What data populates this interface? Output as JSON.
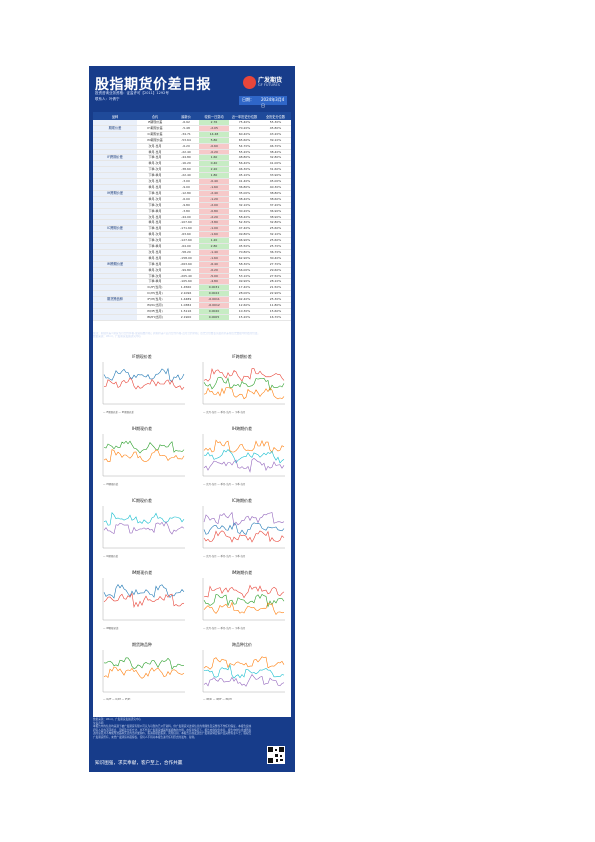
{
  "header": {
    "title": "股指期货价差日报",
    "logo_text": "广发期货",
    "logo_sub": "GF FUTURES",
    "subline1": "投资咨询业务资格：证监许可【2011】1292号",
    "subline2": "联系人：叶倩宁",
    "date_label": "日期：",
    "date_value": "2024年3月4日"
  },
  "table": {
    "columns": [
      "品种",
      "合约",
      "最新价",
      "较前一日变动",
      "近一年历史分位数",
      "全历史分位数"
    ],
    "rows": [
      {
        "group": "",
        "item": "IF期现价差",
        "a": "-6.92",
        "b": "2.76",
        "c": "75.40%",
        "d": "55.30%",
        "cls": "neg"
      },
      {
        "group": "期现价差",
        "item": "IH期现价差",
        "a": "-5.48",
        "b": "-2.05",
        "c": "70.20%",
        "d": "45.80%",
        "cls": "pos"
      },
      {
        "group": "",
        "item": "IC期现价差",
        "a": "-34.71",
        "b": "14.48",
        "c": "60.40%",
        "d": "43.20%",
        "cls": "neg"
      },
      {
        "group": "",
        "item": "IM期现价差",
        "a": "-53.64",
        "b": "5.80",
        "c": "65.60%",
        "d": "39.10%",
        "cls": "neg"
      },
      {
        "group": "",
        "item": "次月-当月",
        "a": "-6.20",
        "b": "-0.60",
        "c": "54.70%",
        "d": "46.70%",
        "cls": "pos"
      },
      {
        "group": "",
        "item": "季月-当月",
        "a": "-22.40",
        "b": "-0.20",
        "c": "55.20%",
        "d": "38.40%",
        "cls": "pos"
      },
      {
        "group": "IF跨期价差",
        "item": "下季-当月",
        "a": "-44.80",
        "b": "1.60",
        "c": "48.80%",
        "d": "32.80%",
        "cls": "neg"
      },
      {
        "group": "",
        "item": "季月-次月",
        "a": "-16.20",
        "b": "0.40",
        "c": "56.40%",
        "d": "41.00%",
        "cls": "neg"
      },
      {
        "group": "",
        "item": "下季-次月",
        "a": "-38.60",
        "b": "2.20",
        "c": "46.30%",
        "d": "31.60%",
        "cls": "neg"
      },
      {
        "group": "",
        "item": "下季-季月",
        "a": "-22.40",
        "b": "1.80",
        "c": "45.10%",
        "d": "33.90%",
        "cls": "neg"
      },
      {
        "group": "",
        "item": "次月-当月",
        "a": "-3.00",
        "b": "-0.40",
        "c": "41.40%",
        "d": "45.00%",
        "cls": "pos"
      },
      {
        "group": "",
        "item": "季月-当月",
        "a": "-9.00",
        "b": "-1.60",
        "c": "36.80%",
        "d": "40.30%",
        "cls": "pos"
      },
      {
        "group": "IH跨期价差",
        "item": "下季-当月",
        "a": "-12.80",
        "b": "-2.40",
        "c": "35.00%",
        "d": "38.80%",
        "cls": "pos"
      },
      {
        "group": "",
        "item": "季月-次月",
        "a": "-6.00",
        "b": "-1.20",
        "c": "38.40%",
        "d": "38.60%",
        "cls": "pos"
      },
      {
        "group": "",
        "item": "下季-次月",
        "a": "-9.80",
        "b": "-2.00",
        "c": "32.10%",
        "d": "37.20%",
        "cls": "pos"
      },
      {
        "group": "",
        "item": "下季-季月",
        "a": "-3.80",
        "b": "-0.80",
        "c": "30.20%",
        "d": "36.90%",
        "cls": "pos"
      },
      {
        "group": "",
        "item": "次月-当月",
        "a": "-44.00",
        "b": "-2.20",
        "c": "58.40%",
        "d": "38.90%",
        "cls": "pos"
      },
      {
        "group": "",
        "item": "季月-当月",
        "a": "-107.60",
        "b": "-3.80",
        "c": "52.30%",
        "d": "32.80%",
        "cls": "pos"
      },
      {
        "group": "IC跨期价差",
        "item": "下季-当月",
        "a": "-171.60",
        "b": "-1.00",
        "c": "47.40%",
        "d": "25.60%",
        "cls": "pos"
      },
      {
        "group": "",
        "item": "季月-次月",
        "a": "-63.60",
        "b": "-1.60",
        "c": "49.80%",
        "d": "32.10%",
        "cls": "pos"
      },
      {
        "group": "",
        "item": "下季-次月",
        "a": "-127.60",
        "b": "1.20",
        "c": "46.90%",
        "d": "25.60%",
        "cls": "neg"
      },
      {
        "group": "",
        "item": "下季-季月",
        "a": "-64.00",
        "b": "2.80",
        "c": "45.50%",
        "d": "25.70%",
        "cls": "neg"
      },
      {
        "group": "",
        "item": "次月-当月",
        "a": "-58.20",
        "b": "-1.40",
        "c": "70.80%",
        "d": "36.70%",
        "cls": "pos"
      },
      {
        "group": "",
        "item": "季月-当月",
        "a": "-158.00",
        "b": "-1.60",
        "c": "62.90%",
        "d": "30.40%",
        "cls": "pos"
      },
      {
        "group": "IM跨期价差",
        "item": "下季-当月",
        "a": "-263.60",
        "b": "-6.40",
        "c": "58.30%",
        "d": "27.70%",
        "cls": "pos"
      },
      {
        "group": "",
        "item": "季月-次月",
        "a": "-99.80",
        "b": "-0.20",
        "c": "56.00%",
        "d": "29.60%",
        "cls": "pos"
      },
      {
        "group": "",
        "item": "下季-次月",
        "a": "-205.40",
        "b": "-5.00",
        "c": "53.10%",
        "d": "27.50%",
        "cls": "pos"
      },
      {
        "group": "",
        "item": "下季-季月",
        "a": "-105.60",
        "b": "-4.80",
        "c": "49.90%",
        "d": "28.10%",
        "cls": "pos"
      },
      {
        "group": "",
        "item": "IC/IF(当月)",
        "a": "1.4560",
        "b": "0.0031",
        "c": "17.40%",
        "d": "21.50%",
        "cls": "neg"
      },
      {
        "group": "",
        "item": "IC/IH(当月)",
        "a": "2.1096",
        "b": "0.0022",
        "c": "28.00%",
        "d": "22.90%",
        "cls": "neg"
      },
      {
        "group": "期货跨品种",
        "item": "IF/IH(当月)",
        "a": "1.4489",
        "b": "-0.0011",
        "c": "42.40%",
        "d": "25.30%",
        "cls": "pos"
      },
      {
        "group": "",
        "item": "IM/IC(当月)",
        "a": "1.0382",
        "b": "-0.0012",
        "c": "12.60%",
        "d": "11.80%",
        "cls": "pos"
      },
      {
        "group": "",
        "item": "IM/IF(当月)",
        "a": "1.5116",
        "b": "0.0020",
        "c": "10.30%",
        "d": "15.60%",
        "cls": "neg"
      },
      {
        "group": "",
        "item": "IM/IH(当月)",
        "a": "2.1900",
        "b": "0.0005",
        "c": "15.20%",
        "d": "16.70%",
        "cls": "neg"
      }
    ]
  },
  "notes": [
    "备注：期现价差=期货当月合约价格-现货指数价格；跨期价差=远月合约价格-近月合约价格；历史分位数表示最新价差在历史数据中所处的位置。",
    "数据来源：Wind，广发期货发展研究中心"
  ],
  "charts": [
    {
      "title": "IF期现价差",
      "legend": "— IF期现价差  — IH期现价差"
    },
    {
      "title": "IF跨期价差",
      "legend": "— 次月-当月  — 季月-当月  — 下季-当月"
    },
    {
      "title": "IH期现价差",
      "legend": "— IH期现价差"
    },
    {
      "title": "IH跨期价差",
      "legend": "— 次月-当月  — 季月-当月  — 下季-当月"
    },
    {
      "title": "IC期现价差",
      "legend": "— IC期现价差"
    },
    {
      "title": "IC跨期价差",
      "legend": "— 次月-当月  — 季月-当月  — 下季-当月"
    },
    {
      "title": "IM期现价差",
      "legend": "— IM期现价差"
    },
    {
      "title": "IM跨期价差",
      "legend": "— 次月-当月  — 季月-当月  — 下季-当月"
    },
    {
      "title": "期货跨品种",
      "legend": "— IC/IF  — IC/IH  — IF/IH"
    },
    {
      "title": "跨品种比价",
      "legend": "— IM/IC  — IM/IF  — IM/IH"
    }
  ],
  "footer": {
    "source": "数据来源：Wind，广发期货发展研究中心",
    "disclaimer_title": "免责声明",
    "disclaimer": "本报告中的信息均来源于被广发期货有限公司认为可靠的已公开资料，但广发期货对这些信息的准确性及完整性不作任何保证。本报告反映研究人员的不同观点、见解及分析方法，并不代表广发期货或其附属机构的立场。在任何情况下，报告内容仅供参考，报告中的信息或所表达的意见并不构成所述品种买卖的出价或询价，投资者据此投资，风险自担。本报告旨在发送给广发期货特定客户及其他专业人士，版权归广发期货所有，未经广发期货书面授权，任何人不得对本报告进行任何形式的发布、复制。",
    "slogan": "知识图强，求实奉献，客户至上，合作共赢",
    "qr_icon": "qr-code-icon"
  },
  "colors": {
    "navy": "#173c8a",
    "pos": "#f6c9c9",
    "neg": "#c7ecc4"
  }
}
